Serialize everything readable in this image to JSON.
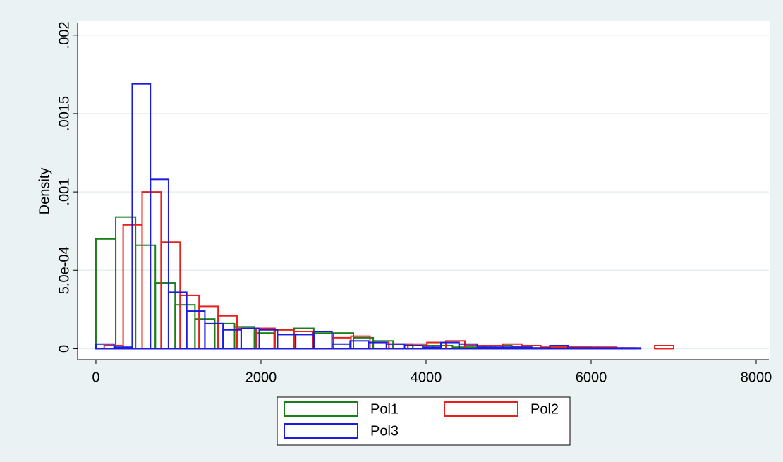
{
  "chart_data": {
    "type": "histogram",
    "y_label": "Density",
    "xlim": [
      -222,
      8154
    ],
    "ylim": [
      -7e-05,
      0.00208
    ],
    "xticks": [
      0,
      2000,
      4000,
      6000,
      8000
    ],
    "yticks": [
      0,
      {
        "value": 0.0005,
        "label": "5.0e-04"
      },
      {
        "value": 0.001,
        "label": ".001"
      },
      {
        "value": 0.0015,
        "label": ".0015"
      },
      {
        "value": 0.002,
        "label": ".002"
      }
    ],
    "grid": true,
    "legend": "bottom",
    "series": [
      {
        "name": "Pol1",
        "color": "#1a7f1a",
        "bins": [
          0,
          240,
          480,
          720,
          960,
          1200,
          1440,
          1680,
          1920,
          2160,
          2400,
          2640,
          2880,
          3120,
          3360,
          3600,
          3840,
          4080,
          4320,
          4560,
          4800,
          5040,
          5280,
          5520,
          5760,
          6000,
          6240
        ],
        "values": [
          0.0007,
          0.00084,
          0.00066,
          0.00042,
          0.00028,
          0.00019,
          0.00016,
          0.00014,
          0.0001,
          0.00012,
          0.00013,
          0.0001,
          0.0001,
          7e-05,
          5e-05,
          3e-05,
          2e-05,
          2e-05,
          1e-05,
          1e-05,
          2e-05,
          1e-05,
          5e-06,
          1e-05,
          1e-05,
          5e-06
        ]
      },
      {
        "name": "Pol2",
        "color": "#e8201c",
        "bins": [
          100,
          330,
          560,
          790,
          1020,
          1250,
          1480,
          1710,
          1940,
          2170,
          2400,
          2630,
          2860,
          3090,
          3320,
          3550,
          3780,
          4010,
          4240,
          4470,
          4700,
          4930,
          5160,
          5390,
          5620,
          5850,
          6080,
          6310,
          6540,
          6770,
          7000
        ],
        "values": [
          2e-05,
          0.00079,
          0.001,
          0.00068,
          0.00034,
          0.00027,
          0.00021,
          0.00013,
          0.00013,
          0.00012,
          0.00011,
          0.00011,
          7e-05,
          8e-05,
          4e-05,
          3e-05,
          3e-05,
          4e-05,
          5e-05,
          2e-05,
          2e-05,
          3e-05,
          2e-05,
          1e-05,
          1e-05,
          1e-05,
          1e-05,
          5e-06,
          0,
          2e-05
        ]
      },
      {
        "name": "Pol3",
        "color": "#1c1ce0",
        "bins": [
          0,
          220,
          440,
          660,
          880,
          1100,
          1320,
          1540,
          1760,
          1980,
          2200,
          2420,
          2640,
          2860,
          3080,
          3300,
          3520,
          3740,
          3960,
          4180,
          4400,
          4620,
          4840,
          5060,
          5280,
          5500,
          5720,
          5940,
          6160,
          6380,
          6600
        ],
        "values": [
          3e-05,
          1e-05,
          0.00169,
          0.00108,
          0.00036,
          0.00024,
          0.00016,
          0.00012,
          0.00013,
          0.00012,
          9e-05,
          9e-05,
          0.00011,
          3e-05,
          5e-05,
          4e-05,
          3e-05,
          2e-05,
          1e-05,
          4e-05,
          3e-05,
          1e-05,
          1e-05,
          1e-05,
          5e-06,
          2e-05,
          5e-06,
          5e-06,
          5e-06,
          5e-06
        ]
      }
    ]
  }
}
